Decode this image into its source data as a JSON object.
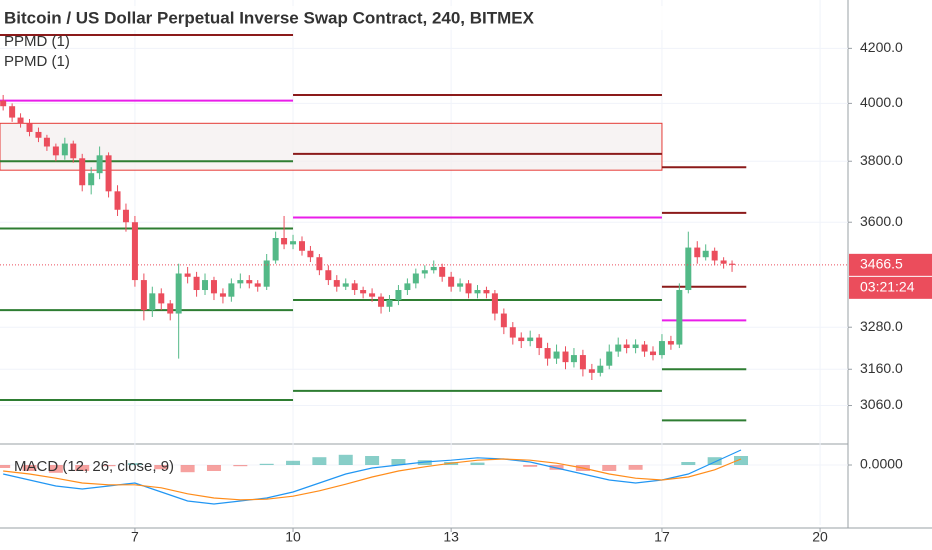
{
  "chart_data": [
    {
      "type": "candlestick",
      "title": "Bitcoin / US Dollar Perpetual Inverse Swap Contract, 240, BITMEX",
      "indicators": [
        "PPMD (1)",
        "PPMD (1)"
      ],
      "log_scale": true,
      "grid": true,
      "xlim": [
        4.44,
        20.53
      ],
      "ylim": [
        2960,
        4384
      ],
      "yticks": [
        {
          "value": 4200,
          "label": "4200.0"
        },
        {
          "value": 4000,
          "label": "4000.0"
        },
        {
          "value": 3800,
          "label": "3800.0"
        },
        {
          "value": 3600,
          "label": "3600.0"
        },
        {
          "value": 3280,
          "label": "3280.0"
        },
        {
          "value": 3160,
          "label": "3160.0"
        },
        {
          "value": 3060,
          "label": "3060.0"
        }
      ],
      "up_color": "#53b987",
      "down_color": "#eb4d5c",
      "x": [
        4.5,
        4.67,
        4.83,
        5,
        5.17,
        5.33,
        5.5,
        5.67,
        5.83,
        6,
        6.17,
        6.33,
        6.5,
        6.67,
        6.83,
        7,
        7.17,
        7.33,
        7.5,
        7.67,
        7.83,
        8,
        8.17,
        8.33,
        8.5,
        8.67,
        8.83,
        9,
        9.17,
        9.33,
        9.5,
        9.67,
        9.83,
        10,
        10.17,
        10.33,
        10.5,
        10.67,
        10.83,
        11,
        11.17,
        11.33,
        11.5,
        11.67,
        11.83,
        12,
        12.17,
        12.33,
        12.5,
        12.67,
        12.83,
        13,
        13.17,
        13.33,
        13.5,
        13.67,
        13.83,
        14,
        14.17,
        14.33,
        14.5,
        14.67,
        14.83,
        15,
        15.17,
        15.33,
        15.5,
        15.67,
        15.83,
        16,
        16.17,
        16.33,
        16.5,
        16.67,
        16.83,
        17,
        17.17,
        17.33,
        17.5,
        17.67,
        17.83,
        18,
        18.17,
        18.33
      ],
      "values": [
        [
          4010,
          4030,
          3975,
          3990
        ],
        [
          3990,
          4000,
          3935,
          3950
        ],
        [
          3950,
          3965,
          3915,
          3930
        ],
        [
          3930,
          3945,
          3885,
          3900
        ],
        [
          3900,
          3915,
          3865,
          3880
        ],
        [
          3880,
          3890,
          3835,
          3850
        ],
        [
          3850,
          3860,
          3800,
          3820
        ],
        [
          3820,
          3880,
          3805,
          3860
        ],
        [
          3860,
          3870,
          3795,
          3810
        ],
        [
          3810,
          3825,
          3700,
          3720
        ],
        [
          3720,
          3780,
          3690,
          3760
        ],
        [
          3760,
          3850,
          3740,
          3820
        ],
        [
          3820,
          3830,
          3680,
          3700
        ],
        [
          3700,
          3720,
          3620,
          3640
        ],
        [
          3640,
          3660,
          3570,
          3600
        ],
        [
          3600,
          3620,
          3400,
          3420
        ],
        [
          3420,
          3440,
          3300,
          3330
        ],
        [
          3330,
          3400,
          3310,
          3380
        ],
        [
          3380,
          3395,
          3330,
          3350
        ],
        [
          3350,
          3360,
          3300,
          3320
        ],
        [
          3320,
          3470,
          3190,
          3440
        ],
        [
          3440,
          3460,
          3410,
          3430
        ],
        [
          3430,
          3445,
          3370,
          3390
        ],
        [
          3390,
          3440,
          3375,
          3420
        ],
        [
          3420,
          3430,
          3360,
          3380
        ],
        [
          3380,
          3395,
          3350,
          3370
        ],
        [
          3370,
          3425,
          3355,
          3410
        ],
        [
          3410,
          3440,
          3395,
          3420
        ],
        [
          3420,
          3435,
          3395,
          3410
        ],
        [
          3410,
          3420,
          3385,
          3400
        ],
        [
          3400,
          3500,
          3390,
          3480
        ],
        [
          3480,
          3570,
          3470,
          3550
        ],
        [
          3550,
          3620,
          3515,
          3530
        ],
        [
          3530,
          3560,
          3515,
          3540
        ],
        [
          3540,
          3555,
          3495,
          3510
        ],
        [
          3510,
          3525,
          3475,
          3490
        ],
        [
          3490,
          3500,
          3435,
          3450
        ],
        [
          3450,
          3465,
          3405,
          3420
        ],
        [
          3420,
          3435,
          3385,
          3400
        ],
        [
          3400,
          3425,
          3390,
          3410
        ],
        [
          3410,
          3420,
          3375,
          3390
        ],
        [
          3390,
          3400,
          3365,
          3380
        ],
        [
          3380,
          3395,
          3355,
          3370
        ],
        [
          3370,
          3380,
          3320,
          3340
        ],
        [
          3340,
          3375,
          3325,
          3360
        ],
        [
          3360,
          3405,
          3345,
          3390
        ],
        [
          3390,
          3425,
          3375,
          3410
        ],
        [
          3410,
          3455,
          3395,
          3440
        ],
        [
          3440,
          3465,
          3425,
          3450
        ],
        [
          3450,
          3480,
          3440,
          3460
        ],
        [
          3460,
          3470,
          3415,
          3430
        ],
        [
          3430,
          3445,
          3385,
          3400
        ],
        [
          3400,
          3425,
          3385,
          3410
        ],
        [
          3410,
          3420,
          3365,
          3380
        ],
        [
          3380,
          3405,
          3365,
          3390
        ],
        [
          3390,
          3400,
          3365,
          3380
        ],
        [
          3380,
          3390,
          3300,
          3320
        ],
        [
          3320,
          3335,
          3260,
          3280
        ],
        [
          3280,
          3295,
          3230,
          3250
        ],
        [
          3250,
          3265,
          3220,
          3240
        ],
        [
          3240,
          3270,
          3225,
          3250
        ],
        [
          3250,
          3260,
          3200,
          3220
        ],
        [
          3220,
          3235,
          3170,
          3190
        ],
        [
          3190,
          3230,
          3175,
          3210
        ],
        [
          3210,
          3225,
          3160,
          3180
        ],
        [
          3180,
          3220,
          3165,
          3200
        ],
        [
          3200,
          3215,
          3140,
          3160
        ],
        [
          3160,
          3175,
          3130,
          3150
        ],
        [
          3150,
          3190,
          3140,
          3170
        ],
        [
          3170,
          3230,
          3160,
          3210
        ],
        [
          3210,
          3250,
          3195,
          3230
        ],
        [
          3230,
          3245,
          3205,
          3220
        ],
        [
          3220,
          3245,
          3205,
          3230
        ],
        [
          3230,
          3240,
          3195,
          3210
        ],
        [
          3210,
          3225,
          3185,
          3200
        ],
        [
          3200,
          3260,
          3190,
          3240
        ],
        [
          3240,
          3255,
          3215,
          3230
        ],
        [
          3230,
          3410,
          3220,
          3390
        ],
        [
          3390,
          3570,
          3380,
          3520
        ],
        [
          3520,
          3540,
          3470,
          3490
        ],
        [
          3490,
          3530,
          3480,
          3510
        ],
        [
          3510,
          3520,
          3465,
          3480
        ],
        [
          3480,
          3490,
          3455,
          3470
        ],
        [
          3470,
          3480,
          3445,
          3466.5
        ]
      ],
      "levels": [
        {
          "color": "#e91ee9",
          "value": 4010,
          "x": [
            4.44,
            10
          ]
        },
        {
          "color": "#e91ee9",
          "value": 3615,
          "x": [
            10,
            17
          ]
        },
        {
          "color": "#e91ee9",
          "value": 3300,
          "x": [
            17,
            18.6
          ]
        },
        {
          "color": "#8b1a1a",
          "value": 4250,
          "x": [
            4.44,
            10
          ]
        },
        {
          "color": "#8b1a1a",
          "value": 4030,
          "x": [
            10,
            17
          ]
        },
        {
          "color": "#8b1a1a",
          "value": 3825,
          "x": [
            10,
            17
          ]
        },
        {
          "color": "#8b1a1a",
          "value": 3780,
          "x": [
            17,
            18.6
          ]
        },
        {
          "color": "#8b1a1a",
          "value": 3630,
          "x": [
            17,
            18.6
          ]
        },
        {
          "color": "#8b1a1a",
          "value": 3400,
          "x": [
            17,
            18.6
          ]
        },
        {
          "color": "#2e7d32",
          "value": 3800,
          "x": [
            4.44,
            10
          ]
        },
        {
          "color": "#2e7d32",
          "value": 3580,
          "x": [
            4.44,
            10
          ]
        },
        {
          "color": "#2e7d32",
          "value": 3330,
          "x": [
            4.44,
            10
          ]
        },
        {
          "color": "#2e7d32",
          "value": 3075,
          "x": [
            4.44,
            10
          ]
        },
        {
          "color": "#2e7d32",
          "value": 3360,
          "x": [
            10,
            17
          ]
        },
        {
          "color": "#2e7d32",
          "value": 3100,
          "x": [
            10,
            17
          ]
        },
        {
          "color": "#2e7d32",
          "value": 3160,
          "x": [
            17,
            18.6
          ]
        },
        {
          "color": "#2e7d32",
          "value": 3020,
          "x": [
            17,
            18.6
          ]
        }
      ],
      "zones": [
        {
          "top": 3930,
          "bottom": 3770,
          "x": [
            4.44,
            17
          ]
        }
      ],
      "current_price": 3466.5,
      "countdown": "03:21:24"
    },
    {
      "type": "line",
      "title": "MACD (12, 26, close, 9)",
      "xlim": [
        4.44,
        20.53
      ],
      "xticks": [
        7,
        10,
        13,
        17,
        20
      ],
      "ylim": [
        -100,
        30
      ],
      "yticks": [
        {
          "value": 0,
          "label": "0.0000"
        }
      ],
      "x": [
        4.5,
        5,
        5.5,
        6,
        6.5,
        7,
        7.5,
        8,
        8.5,
        9,
        9.5,
        10,
        10.5,
        11,
        11.5,
        12,
        12.5,
        13,
        13.5,
        14,
        14.5,
        15,
        15.5,
        16,
        16.5,
        17,
        17.5,
        18,
        18.5
      ],
      "series": [
        {
          "name": "MACD",
          "color": "#2196f3",
          "values": [
            -15,
            -25,
            -35,
            -40,
            -35,
            -30,
            -45,
            -60,
            -65,
            -60,
            -55,
            -45,
            -30,
            -15,
            -5,
            0,
            5,
            8,
            12,
            10,
            5,
            -5,
            -15,
            -25,
            -30,
            -25,
            -15,
            5,
            25
          ]
        },
        {
          "name": "Signal",
          "color": "#ff8c1a",
          "values": [
            -10,
            -15,
            -22,
            -30,
            -33,
            -33,
            -38,
            -48,
            -55,
            -58,
            -57,
            -52,
            -43,
            -32,
            -20,
            -10,
            -3,
            3,
            8,
            10,
            8,
            3,
            -5,
            -15,
            -22,
            -25,
            -20,
            -8,
            10
          ]
        }
      ],
      "histogram": [
        -5,
        -10,
        -13,
        -10,
        -2,
        3,
        -7,
        -12,
        -10,
        -2,
        2,
        7,
        13,
        17,
        15,
        10,
        8,
        5,
        4,
        0,
        -3,
        -8,
        -10,
        -10,
        -8,
        0,
        5,
        13,
        15
      ],
      "hist_up_color": "#26a69a",
      "hist_down_color": "#ef5350"
    }
  ]
}
